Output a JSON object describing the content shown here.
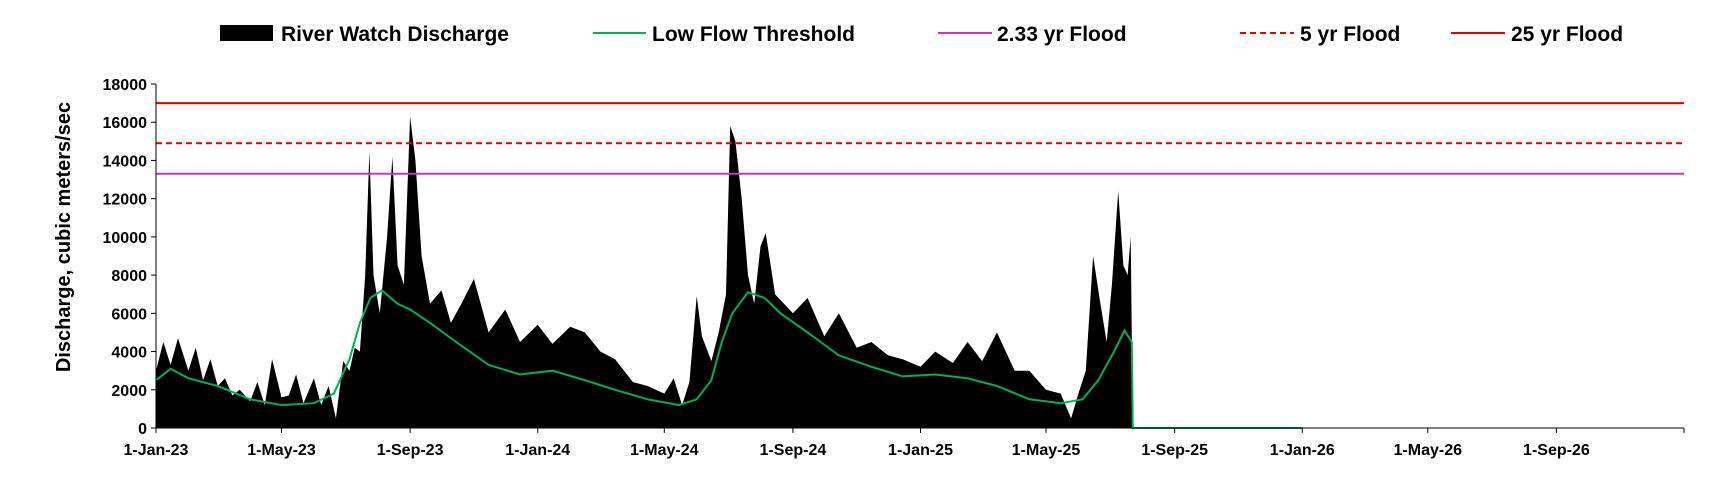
{
  "chart_data": {
    "type": "area",
    "ylabel": "Discharge, cubic meters/sec",
    "ylim": [
      0,
      18000
    ],
    "y_ticks": [
      "0",
      "2000",
      "4000",
      "6000",
      "8000",
      "10000",
      "12000",
      "14000",
      "16000",
      "18000"
    ],
    "x_start": "2023-01-01",
    "x_end": "2026-12-31",
    "x_ticks": [
      {
        "label": "1-Jan-23",
        "date": "2023-01-01"
      },
      {
        "label": "1-May-23",
        "date": "2023-05-01"
      },
      {
        "label": "1-Sep-23",
        "date": "2023-09-01"
      },
      {
        "label": "1-Jan-24",
        "date": "2024-01-01"
      },
      {
        "label": "1-May-24",
        "date": "2024-05-01"
      },
      {
        "label": "1-Sep-24",
        "date": "2024-09-01"
      },
      {
        "label": "1-Jan-25",
        "date": "2025-01-01"
      },
      {
        "label": "1-May-25",
        "date": "2025-05-01"
      },
      {
        "label": "1-Sep-25",
        "date": "2025-09-01"
      },
      {
        "label": "1-Jan-26",
        "date": "2026-01-01"
      },
      {
        "label": "1-May-26",
        "date": "2026-05-01"
      },
      {
        "label": "1-Sep-26",
        "date": "2026-09-01"
      }
    ],
    "legend": [
      "River Watch Discharge",
      "Low Flow Threshold",
      "2.33 yr Flood",
      "5 yr Flood",
      "25 yr Flood"
    ],
    "legend_position": "top",
    "series": [
      {
        "name": "River Watch Discharge",
        "type": "area",
        "color": "#000000",
        "points": [
          [
            "2023-01-01",
            3000
          ],
          [
            "2023-01-08",
            4500
          ],
          [
            "2023-01-15",
            3300
          ],
          [
            "2023-01-22",
            4700
          ],
          [
            "2023-02-01",
            3000
          ],
          [
            "2023-02-08",
            4200
          ],
          [
            "2023-02-15",
            2500
          ],
          [
            "2023-02-22",
            3600
          ],
          [
            "2023-03-01",
            2200
          ],
          [
            "2023-03-08",
            2600
          ],
          [
            "2023-03-15",
            1700
          ],
          [
            "2023-03-22",
            2000
          ],
          [
            "2023-04-01",
            1400
          ],
          [
            "2023-04-08",
            2400
          ],
          [
            "2023-04-15",
            1200
          ],
          [
            "2023-04-22",
            3600
          ],
          [
            "2023-05-01",
            1600
          ],
          [
            "2023-05-08",
            1700
          ],
          [
            "2023-05-15",
            2800
          ],
          [
            "2023-05-22",
            1300
          ],
          [
            "2023-06-01",
            2600
          ],
          [
            "2023-06-08",
            1200
          ],
          [
            "2023-06-15",
            2200
          ],
          [
            "2023-06-22",
            500
          ],
          [
            "2023-06-29",
            3500
          ],
          [
            "2023-07-05",
            3000
          ],
          [
            "2023-07-10",
            4200
          ],
          [
            "2023-07-15",
            4000
          ],
          [
            "2023-07-20",
            8000
          ],
          [
            "2023-07-24",
            14500
          ],
          [
            "2023-07-28",
            8000
          ],
          [
            "2023-08-03",
            6000
          ],
          [
            "2023-08-10",
            10000
          ],
          [
            "2023-08-15",
            14200
          ],
          [
            "2023-08-20",
            8500
          ],
          [
            "2023-08-26",
            7500
          ],
          [
            "2023-09-01",
            16300
          ],
          [
            "2023-09-06",
            14000
          ],
          [
            "2023-09-12",
            9000
          ],
          [
            "2023-09-20",
            6500
          ],
          [
            "2023-10-01",
            7200
          ],
          [
            "2023-10-10",
            5500
          ],
          [
            "2023-10-20",
            6500
          ],
          [
            "2023-11-01",
            7800
          ],
          [
            "2023-11-15",
            5000
          ],
          [
            "2023-12-01",
            6200
          ],
          [
            "2023-12-15",
            4500
          ],
          [
            "2024-01-01",
            5400
          ],
          [
            "2024-01-15",
            4400
          ],
          [
            "2024-02-01",
            5300
          ],
          [
            "2024-02-15",
            5000
          ],
          [
            "2024-03-01",
            4000
          ],
          [
            "2024-03-15",
            3600
          ],
          [
            "2024-04-01",
            2400
          ],
          [
            "2024-04-15",
            2200
          ],
          [
            "2024-05-01",
            1800
          ],
          [
            "2024-05-10",
            2600
          ],
          [
            "2024-05-18",
            1200
          ],
          [
            "2024-05-25",
            2400
          ],
          [
            "2024-06-01",
            6900
          ],
          [
            "2024-06-06",
            4800
          ],
          [
            "2024-06-15",
            3500
          ],
          [
            "2024-06-22",
            5000
          ],
          [
            "2024-06-29",
            7000
          ],
          [
            "2024-07-03",
            15800
          ],
          [
            "2024-07-08",
            15000
          ],
          [
            "2024-07-14",
            12000
          ],
          [
            "2024-07-20",
            8000
          ],
          [
            "2024-07-26",
            6500
          ],
          [
            "2024-08-01",
            9500
          ],
          [
            "2024-08-06",
            10200
          ],
          [
            "2024-08-15",
            7000
          ],
          [
            "2024-09-01",
            6000
          ],
          [
            "2024-09-15",
            6800
          ],
          [
            "2024-10-01",
            4800
          ],
          [
            "2024-10-15",
            6000
          ],
          [
            "2024-11-01",
            4200
          ],
          [
            "2024-11-15",
            4500
          ],
          [
            "2024-12-01",
            3800
          ],
          [
            "2024-12-15",
            3600
          ],
          [
            "2025-01-01",
            3200
          ],
          [
            "2025-01-15",
            4000
          ],
          [
            "2025-02-01",
            3400
          ],
          [
            "2025-02-15",
            4500
          ],
          [
            "2025-03-01",
            3500
          ],
          [
            "2025-03-15",
            5000
          ],
          [
            "2025-04-01",
            3000
          ],
          [
            "2025-04-15",
            3000
          ],
          [
            "2025-05-01",
            2000
          ],
          [
            "2025-05-15",
            1800
          ],
          [
            "2025-05-25",
            500
          ],
          [
            "2025-06-01",
            1800
          ],
          [
            "2025-06-08",
            3000
          ],
          [
            "2025-06-15",
            9000
          ],
          [
            "2025-06-22",
            6500
          ],
          [
            "2025-06-28",
            4500
          ],
          [
            "2025-07-03",
            7500
          ],
          [
            "2025-07-09",
            12400
          ],
          [
            "2025-07-14",
            8500
          ],
          [
            "2025-07-18",
            8000
          ],
          [
            "2025-07-21",
            10000
          ],
          [
            "2025-07-23",
            0
          ]
        ]
      },
      {
        "name": "Low Flow Threshold",
        "type": "line",
        "color": "#00b050",
        "points": [
          [
            "2023-01-01",
            2500
          ],
          [
            "2023-01-15",
            3100
          ],
          [
            "2023-02-01",
            2600
          ],
          [
            "2023-03-01",
            2200
          ],
          [
            "2023-04-01",
            1500
          ],
          [
            "2023-05-01",
            1200
          ],
          [
            "2023-06-01",
            1300
          ],
          [
            "2023-06-20",
            1800
          ],
          [
            "2023-07-05",
            3600
          ],
          [
            "2023-07-15",
            5500
          ],
          [
            "2023-07-25",
            6800
          ],
          [
            "2023-08-05",
            7200
          ],
          [
            "2023-08-20",
            6500
          ],
          [
            "2023-09-01",
            6200
          ],
          [
            "2023-09-20",
            5500
          ],
          [
            "2023-10-15",
            4500
          ],
          [
            "2023-11-15",
            3300
          ],
          [
            "2023-12-15",
            2800
          ],
          [
            "2024-01-15",
            3000
          ],
          [
            "2024-02-15",
            2500
          ],
          [
            "2024-03-15",
            2000
          ],
          [
            "2024-04-15",
            1500
          ],
          [
            "2024-05-15",
            1200
          ],
          [
            "2024-06-01",
            1500
          ],
          [
            "2024-06-15",
            2500
          ],
          [
            "2024-06-25",
            4500
          ],
          [
            "2024-07-05",
            6000
          ],
          [
            "2024-07-20",
            7100
          ],
          [
            "2024-08-05",
            6800
          ],
          [
            "2024-08-20",
            6000
          ],
          [
            "2024-09-15",
            5000
          ],
          [
            "2024-10-15",
            3800
          ],
          [
            "2024-11-15",
            3200
          ],
          [
            "2024-12-15",
            2700
          ],
          [
            "2025-01-15",
            2800
          ],
          [
            "2025-02-15",
            2600
          ],
          [
            "2025-03-15",
            2200
          ],
          [
            "2025-04-15",
            1500
          ],
          [
            "2025-05-15",
            1300
          ],
          [
            "2025-06-05",
            1500
          ],
          [
            "2025-06-20",
            2500
          ],
          [
            "2025-07-05",
            4000
          ],
          [
            "2025-07-15",
            5100
          ],
          [
            "2025-07-22",
            4500
          ],
          [
            "2025-07-23",
            0
          ],
          [
            "2026-01-01",
            0
          ]
        ]
      },
      {
        "name": "2.33 yr Flood",
        "type": "hline",
        "value": 13300,
        "color": "#cc33cc",
        "dash": false
      },
      {
        "name": "5 yr Flood",
        "type": "hline",
        "value": 14900,
        "color": "#e00000",
        "dash": true
      },
      {
        "name": "25 yr Flood",
        "type": "hline",
        "value": 17000,
        "color": "#e00000",
        "dash": false
      }
    ]
  }
}
